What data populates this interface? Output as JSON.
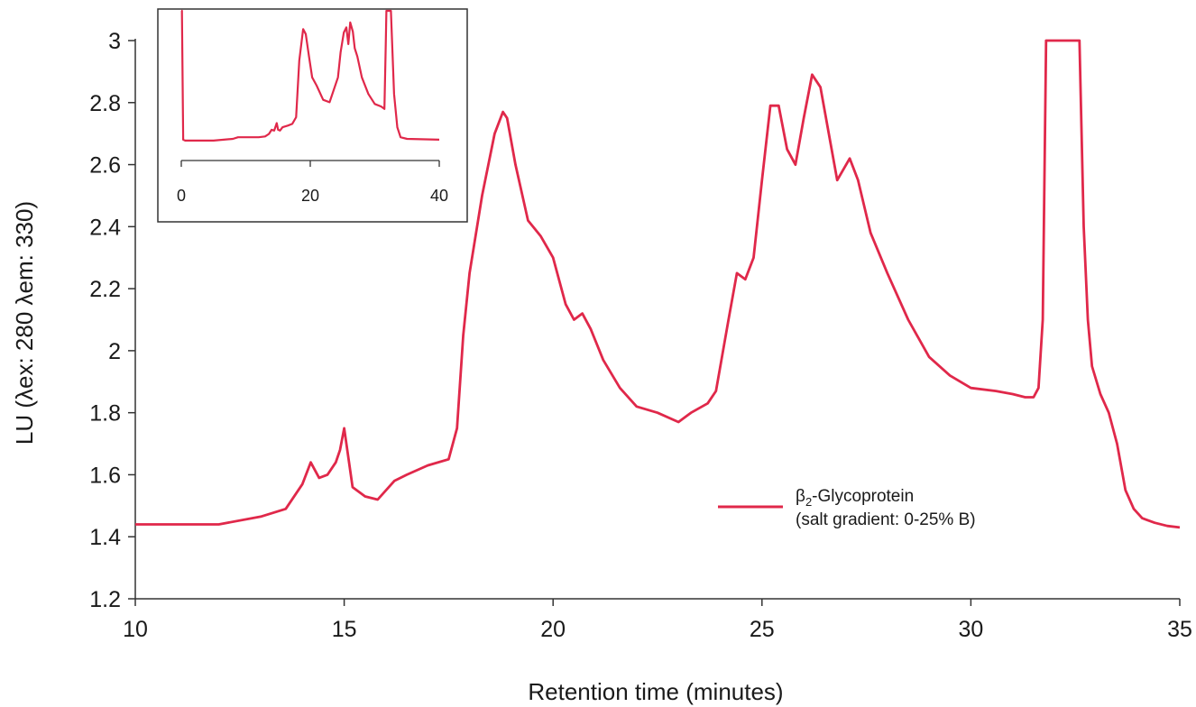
{
  "chart_data": {
    "type": "line",
    "xlabel": "Retention time (minutes)",
    "ylabel": "LU (λex: 280  λem: 330)",
    "xlim": [
      10,
      35
    ],
    "ylim": [
      1.2,
      3.0
    ],
    "xticks": [
      "10",
      "15",
      "20",
      "25",
      "30",
      "35"
    ],
    "yticks": [
      "1.2",
      "1.4",
      "1.6",
      "1.8",
      "2",
      "2.2",
      "2.4",
      "2.6",
      "2.8",
      "3"
    ],
    "grid": false,
    "legend_position": "lower-right",
    "series": [
      {
        "name_main": "β",
        "name_sub": "2",
        "name_rest": "-Glycoprotein",
        "name_line2": "(salt gradient: 0-25% B)",
        "color": "#e0284a",
        "x": [
          10.0,
          11.0,
          12.0,
          13.0,
          13.6,
          14.0,
          14.2,
          14.4,
          14.6,
          14.8,
          14.9,
          15.0,
          15.2,
          15.5,
          15.8,
          16.2,
          16.5,
          17.0,
          17.5,
          17.7,
          17.85,
          18.0,
          18.3,
          18.6,
          18.8,
          18.9,
          19.1,
          19.4,
          19.7,
          20.0,
          20.3,
          20.5,
          20.7,
          20.9,
          21.2,
          21.6,
          22.0,
          22.5,
          23.0,
          23.3,
          23.7,
          23.9,
          24.2,
          24.4,
          24.6,
          24.8,
          25.0,
          25.2,
          25.4,
          25.6,
          25.8,
          26.0,
          26.2,
          26.4,
          26.6,
          26.8,
          27.1,
          27.3,
          27.6,
          28.0,
          28.5,
          29.0,
          29.5,
          30.0,
          30.6,
          31.0,
          31.3,
          31.5,
          31.62,
          31.72,
          31.8,
          31.85,
          32.5,
          32.6,
          32.7,
          32.8,
          32.9,
          33.1,
          33.3,
          33.5,
          33.7,
          33.9,
          34.1,
          34.4,
          34.7,
          35.0
        ],
        "y": [
          1.44,
          1.44,
          1.44,
          1.465,
          1.49,
          1.57,
          1.64,
          1.59,
          1.6,
          1.64,
          1.68,
          1.75,
          1.56,
          1.53,
          1.52,
          1.58,
          1.6,
          1.63,
          1.65,
          1.75,
          2.05,
          2.25,
          2.5,
          2.7,
          2.77,
          2.75,
          2.6,
          2.42,
          2.37,
          2.3,
          2.15,
          2.1,
          2.12,
          2.07,
          1.97,
          1.88,
          1.82,
          1.8,
          1.77,
          1.8,
          1.83,
          1.87,
          2.1,
          2.25,
          2.23,
          2.3,
          2.55,
          2.79,
          2.79,
          2.65,
          2.6,
          2.75,
          2.89,
          2.85,
          2.7,
          2.55,
          2.62,
          2.55,
          2.38,
          2.25,
          2.1,
          1.98,
          1.92,
          1.88,
          1.87,
          1.86,
          1.85,
          1.85,
          1.88,
          2.1,
          3.0,
          3.0,
          3.0,
          3.0,
          2.4,
          2.1,
          1.95,
          1.86,
          1.8,
          1.7,
          1.55,
          1.49,
          1.46,
          1.445,
          1.435,
          1.43
        ]
      }
    ],
    "inset": {
      "xlim": [
        0,
        40
      ],
      "xticks": [
        "0",
        "20",
        "40"
      ],
      "x": [
        0.0,
        0.1,
        0.3,
        0.6,
        2.0,
        5.0,
        8.0,
        8.8,
        10.0,
        12.0,
        13.0,
        13.6,
        14.0,
        14.4,
        14.8,
        15.0,
        15.3,
        15.7,
        16.5,
        17.2,
        17.8,
        18.3,
        18.9,
        19.3,
        19.8,
        20.3,
        21.0,
        22.0,
        23.0,
        24.3,
        24.7,
        25.2,
        25.6,
        25.9,
        26.2,
        26.6,
        26.9,
        27.3,
        28.0,
        29.0,
        30.0,
        31.0,
        31.5,
        31.7,
        31.8,
        31.9,
        32.5,
        32.6,
        33.0,
        33.5,
        34.0,
        35.0,
        40.0
      ],
      "y": [
        3.0,
        3.0,
        1.45,
        1.44,
        1.44,
        1.44,
        1.46,
        1.48,
        1.48,
        1.48,
        1.49,
        1.52,
        1.57,
        1.56,
        1.65,
        1.57,
        1.56,
        1.6,
        1.62,
        1.64,
        1.72,
        2.4,
        2.78,
        2.72,
        2.45,
        2.2,
        2.1,
        1.93,
        1.9,
        2.2,
        2.5,
        2.74,
        2.8,
        2.6,
        2.86,
        2.75,
        2.55,
        2.45,
        2.2,
        2.0,
        1.88,
        1.85,
        1.82,
        2.6,
        3.0,
        3.0,
        3.0,
        2.8,
        2.0,
        1.6,
        1.48,
        1.46,
        1.45
      ]
    }
  }
}
